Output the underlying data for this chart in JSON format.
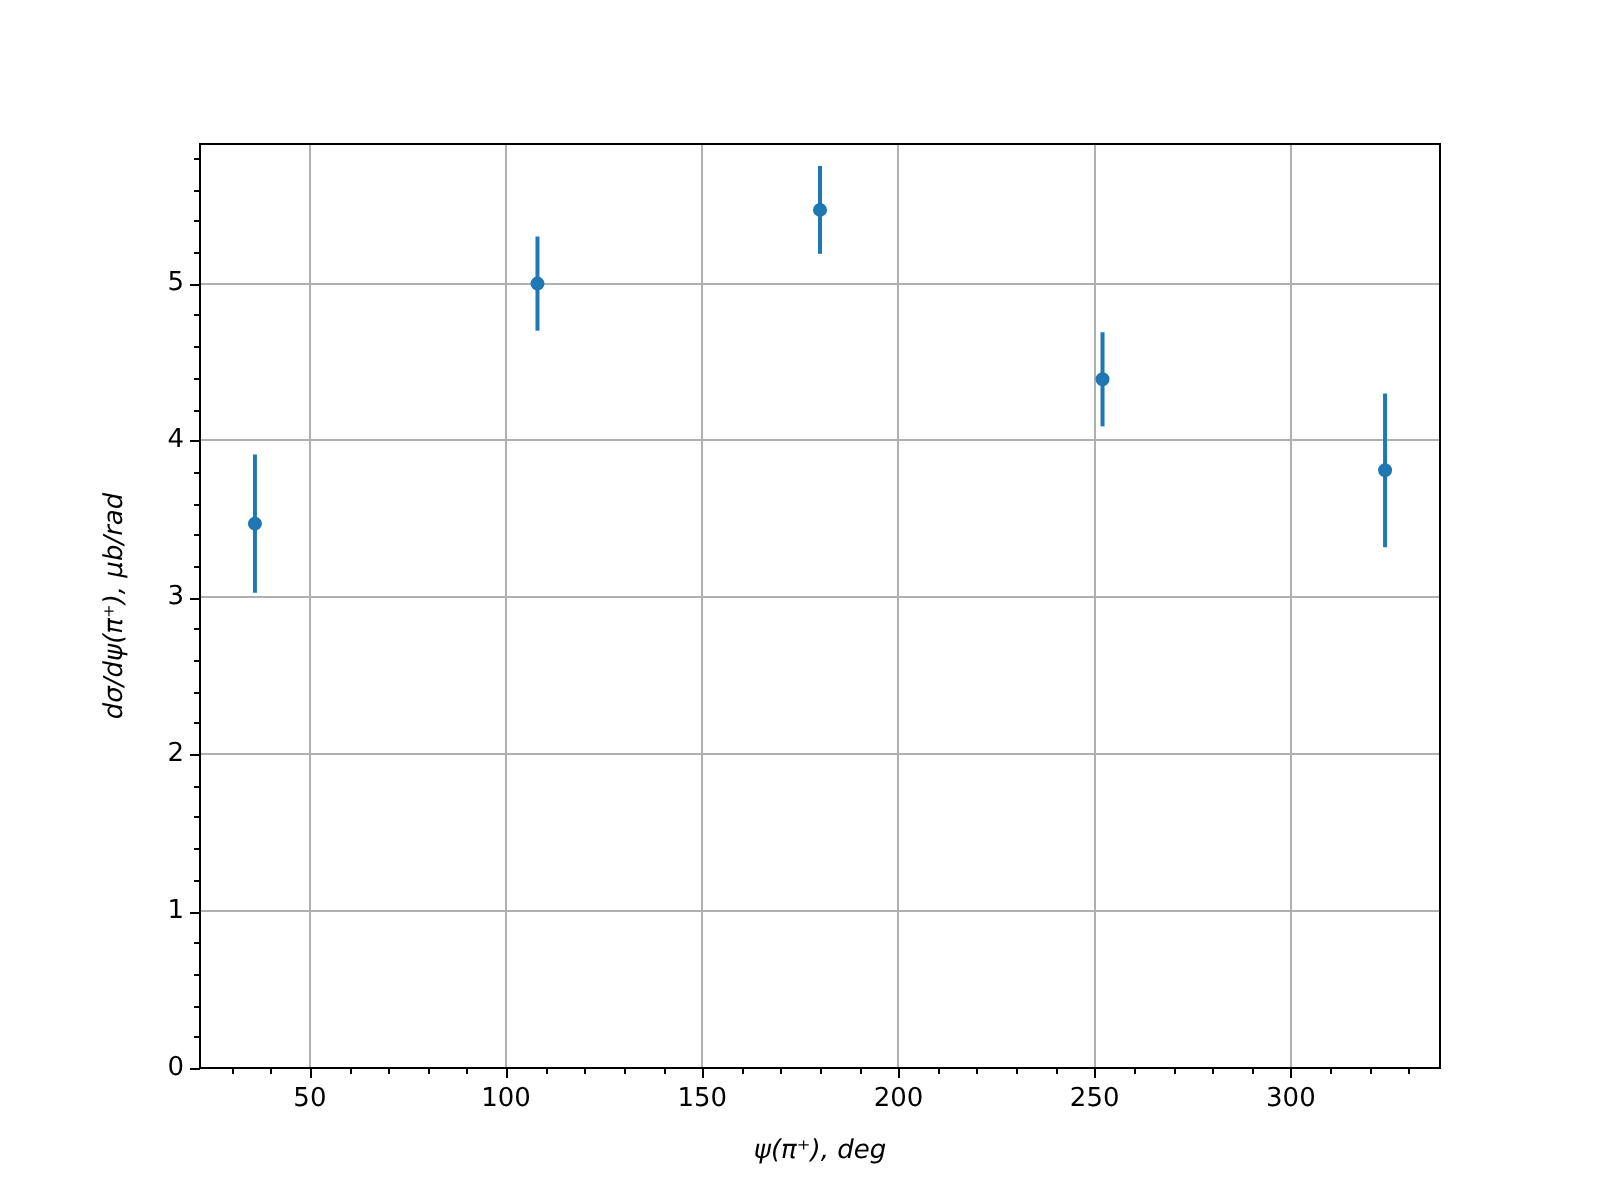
{
  "chart_data": {
    "type": "scatter",
    "xlabel": "ψ(π⁺), deg",
    "ylabel": "dσ/dψ(π⁺), μb/rad",
    "x": [
      36,
      108,
      180,
      252,
      324
    ],
    "series": [
      {
        "color": "#1f77b4",
        "values": [
          3.47,
          5.0,
          5.47,
          4.39,
          3.81
        ],
        "errors": [
          0.44,
          0.3,
          0.28,
          0.3,
          0.49
        ]
      }
    ],
    "xlim": [
      22,
      338
    ],
    "xticks": [
      {
        "value": 30,
        "label": null
      },
      {
        "value": 40,
        "label": null
      },
      50,
      {
        "value": 60,
        "label": null
      },
      {
        "value": 70,
        "label": null
      },
      {
        "value": 80,
        "label": null
      },
      {
        "value": 90,
        "label": null
      },
      100,
      {
        "value": 110,
        "label": null
      },
      {
        "value": 120,
        "label": null
      },
      {
        "value": 130,
        "label": null
      },
      {
        "value": 140,
        "label": null
      },
      150,
      {
        "value": 160,
        "label": null
      },
      {
        "value": 170,
        "label": null
      },
      {
        "value": 180,
        "label": null
      },
      {
        "value": 190,
        "label": null
      },
      200,
      {
        "value": 210,
        "label": null
      },
      {
        "value": 220,
        "label": null
      },
      {
        "value": 230,
        "label": null
      },
      {
        "value": 240,
        "label": null
      },
      250,
      {
        "value": 260,
        "label": null
      },
      {
        "value": 270,
        "label": null
      },
      {
        "value": 280,
        "label": null
      },
      {
        "value": 290,
        "label": null
      },
      300,
      {
        "value": 310,
        "label": null
      },
      {
        "value": 320,
        "label": null
      },
      {
        "value": 330,
        "label": null
      }
    ],
    "ylim": [
      0,
      5.89
    ],
    "yticks": [
      0,
      {
        "value": 0.2,
        "label": null
      },
      {
        "value": 0.4,
        "label": null
      },
      {
        "value": 0.6,
        "label": null
      },
      {
        "value": 0.8,
        "label": null
      },
      1,
      {
        "value": 1.2,
        "label": null
      },
      {
        "value": 1.4,
        "label": null
      },
      {
        "value": 1.6,
        "label": null
      },
      {
        "value": 1.8,
        "label": null
      },
      2,
      {
        "value": 2.2,
        "label": null
      },
      {
        "value": 2.4,
        "label": null
      },
      {
        "value": 2.6,
        "label": null
      },
      {
        "value": 2.8,
        "label": null
      },
      3,
      {
        "value": 3.2,
        "label": null
      },
      {
        "value": 3.4,
        "label": null
      },
      {
        "value": 3.6,
        "label": null
      },
      {
        "value": 3.8,
        "label": null
      },
      4,
      {
        "value": 4.2,
        "label": null
      },
      {
        "value": 4.4,
        "label": null
      },
      {
        "value": 4.6,
        "label": null
      },
      {
        "value": 4.8,
        "label": null
      },
      5,
      {
        "value": 5.2,
        "label": null
      },
      {
        "value": 5.4,
        "label": null
      },
      {
        "value": 5.6,
        "label": null
      },
      {
        "value": 5.8,
        "label": null
      }
    ],
    "grid": true,
    "marker": "circle",
    "legend": false
  }
}
